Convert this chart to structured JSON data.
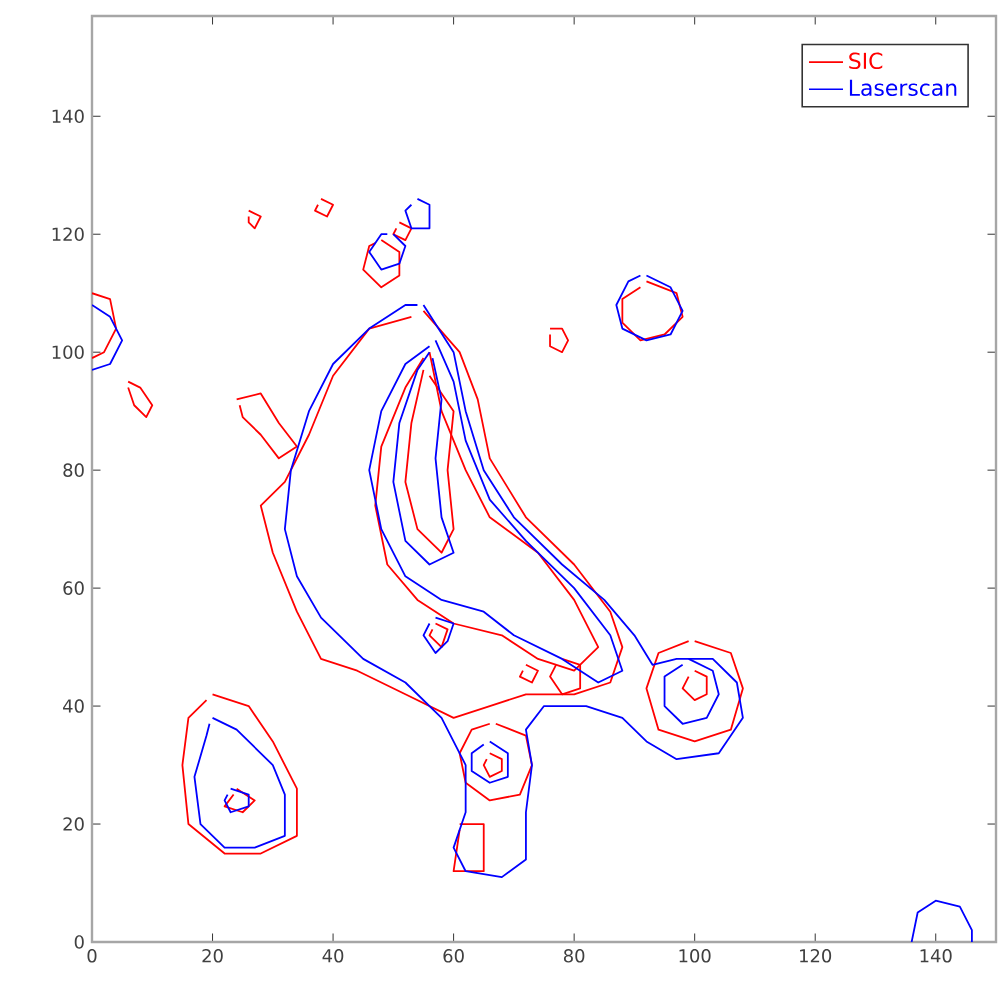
{
  "chart_data": {
    "type": "line",
    "xlim": [
      0,
      150
    ],
    "ylim": [
      0,
      157
    ],
    "xticks": [
      0,
      20,
      40,
      60,
      80,
      100,
      120,
      140
    ],
    "yticks": [
      0,
      20,
      40,
      60,
      80,
      100,
      120,
      140
    ],
    "legend": "top right",
    "grid": false,
    "marker": "none",
    "line_style": "solid",
    "series": [
      {
        "name": "SIC",
        "type": "line",
        "color": "#ff0000",
        "x": [
          55,
          61,
          64,
          66,
          72,
          80,
          86,
          88,
          86,
          80,
          72,
          66,
          60,
          52,
          44,
          38,
          34,
          30,
          28,
          32,
          36,
          40,
          46,
          53
        ],
        "values": [
          107,
          100,
          92,
          82,
          72,
          64,
          56,
          50,
          44,
          42,
          42,
          40,
          38,
          42,
          46,
          48,
          56,
          66,
          74,
          78,
          86,
          96,
          104,
          106
        ]
      },
      {
        "color": "#ff0000",
        "x": [
          56,
          58,
          62,
          66,
          74,
          80,
          84,
          80,
          74,
          68,
          60,
          54,
          49,
          47,
          48,
          52,
          55
        ],
        "values": [
          100,
          90,
          80,
          72,
          66,
          58,
          50,
          46,
          48,
          52,
          54,
          58,
          64,
          74,
          84,
          94,
          99
        ]
      },
      {
        "color": "#ff0000",
        "x": [
          55,
          53,
          52,
          54,
          58,
          60,
          59,
          60,
          56
        ],
        "values": [
          97,
          88,
          78,
          70,
          66,
          70,
          80,
          90,
          96
        ]
      },
      {
        "color": "#ff0000",
        "x": [
          100,
          106,
          108,
          106,
          100,
          94,
          92,
          94,
          99
        ],
        "values": [
          51,
          49,
          43,
          36,
          34,
          36,
          43,
          49,
          51
        ]
      },
      {
        "color": "#ff0000",
        "x": [
          100,
          102,
          102,
          100,
          98,
          99
        ],
        "values": [
          46,
          45,
          42,
          41,
          43,
          45
        ]
      },
      {
        "color": "#ff0000",
        "x": [
          67,
          72,
          73,
          71,
          66,
          62,
          61,
          63,
          66
        ],
        "values": [
          37,
          35,
          30,
          25,
          24,
          27,
          32,
          36,
          37
        ]
      },
      {
        "color": "#ff0000",
        "x": [
          66,
          68,
          68,
          66,
          65,
          65.5
        ],
        "values": [
          32,
          31,
          29,
          28,
          30,
          31
        ]
      },
      {
        "color": "#ff0000",
        "x": [
          61,
          65,
          65,
          60,
          61
        ],
        "values": [
          20,
          20,
          12,
          12,
          19
        ]
      },
      {
        "color": "#ff0000",
        "x": [
          20,
          26,
          30,
          34,
          34,
          28,
          22,
          16,
          15,
          16,
          19
        ],
        "values": [
          42,
          40,
          34,
          26,
          18,
          15,
          15,
          20,
          30,
          38,
          41
        ]
      },
      {
        "color": "#ff0000",
        "x": [
          24,
          27,
          25,
          22,
          23.5
        ],
        "values": [
          26,
          24,
          22,
          23,
          25
        ]
      },
      {
        "color": "#ff0000",
        "x": [
          24,
          28,
          31,
          34,
          31,
          28,
          25,
          24.5
        ],
        "values": [
          92,
          93,
          88,
          84,
          82,
          86,
          89,
          91
        ]
      },
      {
        "color": "#ff0000",
        "x": [
          26,
          28,
          27,
          26,
          26
        ],
        "values": [
          124,
          123,
          121,
          122,
          123
        ]
      },
      {
        "color": "#ff0000",
        "x": [
          38,
          40,
          39,
          37,
          37.5
        ],
        "values": [
          126,
          125,
          123,
          124,
          125
        ]
      },
      {
        "color": "#ff0000",
        "x": [
          51,
          53,
          52,
          50,
          50.5
        ],
        "values": [
          122,
          121,
          119,
          120,
          121
        ]
      },
      {
        "color": "#ff0000",
        "x": [
          76,
          78,
          79,
          78,
          76,
          76
        ],
        "values": [
          104,
          104,
          102,
          100,
          101,
          103
        ]
      },
      {
        "color": "#ff0000",
        "x": [
          6,
          8,
          10,
          9,
          7,
          6,
          null,
          48,
          51,
          51,
          48,
          45,
          46,
          47,
          null,
          92,
          97,
          98,
          95,
          91,
          88,
          88,
          91,
          null,
          0,
          3,
          4,
          2,
          0,
          null,
          78,
          81,
          81,
          78,
          76,
          77,
          null,
          57,
          59,
          58,
          56,
          56.5,
          null,
          72,
          74,
          73,
          71,
          71.5
        ],
        "values": [
          95,
          94,
          91,
          89,
          91,
          94,
          null,
          119,
          117,
          113,
          111,
          114,
          118,
          118.5,
          null,
          112,
          110,
          106,
          103,
          102,
          105,
          109,
          111,
          null,
          110,
          109,
          104,
          100,
          99,
          null,
          48,
          47,
          43,
          42,
          45,
          47,
          null,
          54,
          53,
          50,
          52,
          53,
          null,
          47,
          46,
          44,
          45,
          46
        ]
      },
      {
        "name": "Laserscan",
        "type": "line",
        "color": "#0000ff",
        "x": [
          55,
          60,
          62,
          65,
          70,
          78,
          85,
          90,
          93,
          97,
          103,
          107,
          108,
          104,
          97,
          92,
          88,
          82,
          75,
          72,
          73,
          72,
          72,
          68,
          62,
          60,
          62,
          62,
          58,
          52,
          45,
          38,
          34,
          32,
          33,
          36,
          40,
          46,
          52,
          54
        ],
        "values": [
          108,
          100,
          90,
          80,
          72,
          64,
          58,
          52,
          47,
          48,
          48,
          44,
          38,
          32,
          31,
          34,
          38,
          40,
          40,
          36,
          30,
          22,
          14,
          11,
          12,
          16,
          22,
          30,
          38,
          44,
          48,
          55,
          62,
          70,
          80,
          90,
          98,
          104,
          108,
          108
        ]
      },
      {
        "color": "#0000ff",
        "x": [
          57,
          60,
          62,
          66,
          72,
          80,
          86,
          88,
          84,
          78,
          70,
          65,
          58,
          52,
          48,
          46,
          48,
          52,
          56
        ],
        "values": [
          102,
          95,
          85,
          75,
          68,
          60,
          52,
          46,
          44,
          48,
          52,
          56,
          58,
          62,
          70,
          80,
          90,
          98,
          101
        ]
      },
      {
        "color": "#0000ff",
        "x": [
          56,
          54,
          51,
          50,
          52,
          56,
          60,
          58,
          57,
          58,
          56.5
        ],
        "values": [
          100,
          97,
          88,
          78,
          68,
          64,
          66,
          72,
          82,
          92,
          99
        ]
      },
      {
        "color": "#0000ff",
        "x": [
          99,
          103,
          104,
          102,
          98,
          95,
          95,
          98
        ],
        "values": [
          48,
          46,
          42,
          38,
          37,
          40,
          45,
          47
        ]
      },
      {
        "color": "#0000ff",
        "x": [
          66,
          69,
          69,
          66,
          63,
          63,
          65
        ],
        "values": [
          34,
          32,
          28,
          27,
          29,
          32,
          33.5
        ]
      },
      {
        "color": "#0000ff",
        "x": [
          20,
          24,
          30,
          32,
          32,
          27,
          22,
          18,
          17,
          19,
          19.5
        ],
        "values": [
          38,
          36,
          30,
          25,
          18,
          16,
          16,
          20,
          28,
          35,
          37
        ]
      },
      {
        "color": "#0000ff",
        "x": [
          23,
          26,
          26,
          23,
          22,
          22.5
        ],
        "values": [
          26,
          25,
          23,
          22,
          24,
          25
        ]
      },
      {
        "color": "#0000ff",
        "x": [
          57,
          60,
          59,
          57,
          55,
          56
        ],
        "values": [
          55,
          54,
          51,
          49,
          52,
          54
        ]
      },
      {
        "color": "#0000ff",
        "x": [
          92,
          96,
          98,
          96,
          92,
          88,
          87,
          89,
          91
        ],
        "values": [
          113,
          111,
          107,
          103,
          102,
          104,
          108,
          112,
          113
        ]
      },
      {
        "color": "#0000ff",
        "x": [
          50,
          52,
          51,
          48,
          46,
          48,
          49
        ],
        "values": [
          120,
          118,
          115,
          114,
          117,
          120,
          120
        ]
      },
      {
        "color": "#0000ff",
        "x": [
          54,
          56,
          56,
          53,
          52,
          53
        ],
        "values": [
          126,
          125,
          121,
          121,
          124,
          125
        ]
      },
      {
        "color": "#0000ff",
        "x": [
          0,
          3,
          5,
          3,
          0
        ],
        "values": [
          108,
          106,
          102,
          98,
          97
        ]
      },
      {
        "color": "#0000ff",
        "x": [
          136,
          137,
          140,
          144,
          146,
          146
        ],
        "values": [
          0,
          5,
          7,
          6,
          2,
          0
        ]
      }
    ]
  }
}
